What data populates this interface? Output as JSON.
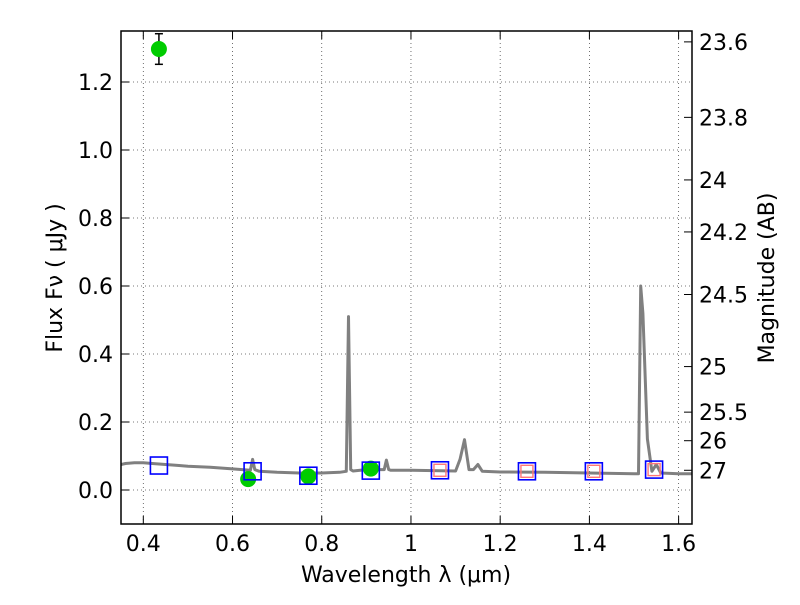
{
  "chart_data": {
    "type": "scatter",
    "xlabel": "Wavelength  λ (μm)",
    "ylabel": "Flux  Fν  ( μJy )",
    "y2label": "Magnitude (AB)",
    "xlim": [
      0.35,
      1.63
    ],
    "ylim": [
      -0.1,
      1.35
    ],
    "grid": true,
    "x_ticks": [
      0.4,
      0.6,
      0.8,
      1.0,
      1.2,
      1.4,
      1.6
    ],
    "x_tick_labels": [
      "0.4",
      "0.6",
      "0.8",
      "1",
      "1.2",
      "1.4",
      "1.6"
    ],
    "y_ticks": [
      0.0,
      0.2,
      0.4,
      0.6,
      0.8,
      1.0,
      1.2
    ],
    "y_tick_labels": [
      "0.0",
      "0.2",
      "0.4",
      "0.6",
      "0.8",
      "1.0",
      "1.2"
    ],
    "y2_ticks": [
      {
        "label": "23.6",
        "flux": 1.318
      },
      {
        "label": "23.8",
        "flux": 1.096
      },
      {
        "label": "24",
        "flux": 0.912
      },
      {
        "label": "24.2",
        "flux": 0.759
      },
      {
        "label": "24.5",
        "flux": 0.575
      },
      {
        "label": "25",
        "flux": 0.363
      },
      {
        "label": "25.5",
        "flux": 0.229
      },
      {
        "label": "26",
        "flux": 0.145
      },
      {
        "label": "27",
        "flux": 0.058
      }
    ],
    "series": [
      {
        "kind": "line",
        "color": "#808080",
        "x": [
          0.35,
          0.36,
          0.38,
          0.4,
          0.42,
          0.45,
          0.48,
          0.5,
          0.55,
          0.6,
          0.64,
          0.645,
          0.65,
          0.66,
          0.7,
          0.75,
          0.8,
          0.84,
          0.855,
          0.86,
          0.865,
          0.87,
          0.9,
          0.94,
          0.945,
          0.95,
          0.955,
          0.96,
          1.0,
          1.05,
          1.1,
          1.11,
          1.12,
          1.13,
          1.14,
          1.15,
          1.16,
          1.2,
          1.3,
          1.4,
          1.5,
          1.51,
          1.515,
          1.52,
          1.53,
          1.54,
          1.55,
          1.56,
          1.6,
          1.63
        ],
        "y": [
          0.075,
          0.078,
          0.08,
          0.08,
          0.078,
          0.075,
          0.072,
          0.07,
          0.067,
          0.062,
          0.058,
          0.09,
          0.06,
          0.055,
          0.052,
          0.05,
          0.05,
          0.052,
          0.055,
          0.51,
          0.06,
          0.056,
          0.06,
          0.06,
          0.088,
          0.06,
          0.058,
          0.058,
          0.058,
          0.057,
          0.056,
          0.09,
          0.148,
          0.06,
          0.06,
          0.075,
          0.055,
          0.053,
          0.052,
          0.05,
          0.048,
          0.048,
          0.6,
          0.52,
          0.15,
          0.055,
          0.075,
          0.05,
          0.048,
          0.048
        ]
      },
      {
        "kind": "points",
        "marker": "circle",
        "color": "#00cc00",
        "x": [
          0.435,
          0.635,
          0.77,
          0.91
        ],
        "y": [
          1.297,
          0.032,
          0.04,
          0.063
        ],
        "yerr": [
          0.045,
          0.006,
          0.008,
          0.012
        ]
      },
      {
        "kind": "points",
        "marker": "open-square",
        "color": "#0000ff",
        "x": [
          0.435,
          0.645,
          0.77,
          0.91,
          1.065,
          1.26,
          1.41,
          1.545
        ],
        "y": [
          0.072,
          0.055,
          0.042,
          0.057,
          0.058,
          0.055,
          0.055,
          0.06
        ]
      },
      {
        "kind": "points",
        "marker": "open-square-small",
        "color": "#ff7777",
        "x": [
          1.065,
          1.26,
          1.41,
          1.545
        ],
        "y": [
          0.058,
          0.055,
          0.055,
          0.06
        ]
      }
    ]
  }
}
